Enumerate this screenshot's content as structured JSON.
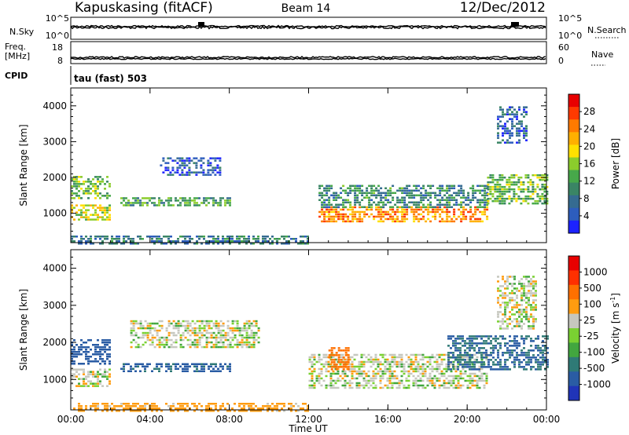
{
  "header": {
    "station": "Kapuskasing (fitACF)",
    "beam": "Beam 14",
    "date": "12/Dec/2012"
  },
  "ancillary": {
    "nsky_label": "N.Sky",
    "nsky_ticks": [
      "10^5",
      "10^0"
    ],
    "nsearch_label": "N.Search",
    "nsearch_ticks": [
      "10^5",
      "10^0"
    ],
    "freq_label_1": "Freq.",
    "freq_label_2": "[MHz]",
    "freq_ticks": [
      "18",
      "8"
    ],
    "nave_label": "Nave",
    "nave_ticks": [
      "60",
      "0"
    ],
    "cpid_label": "CPID",
    "cpid_value": "tau (fast) 503"
  },
  "chart_data": [
    {
      "type": "heatmap",
      "title": "",
      "xlabel": "Time UT",
      "ylabel": "Slant Range [km]",
      "x_ticks": [
        "00:00",
        "04:00",
        "08:00",
        "12:00",
        "16:00",
        "20:00",
        "00:00"
      ],
      "xlim_hours": [
        0,
        24
      ],
      "y_ticks": [
        "4000",
        "3000",
        "2000",
        "1000"
      ],
      "ylim_km": [
        180,
        4500
      ],
      "colorbar": {
        "label": "Power [dB]",
        "ticks": [
          "28",
          "24",
          "20",
          "16",
          "12",
          "8",
          "4"
        ],
        "range_db": [
          0,
          32
        ],
        "colors": [
          "#1c22ff",
          "#2d5dbd",
          "#356b91",
          "#3a8565",
          "#47a84a",
          "#8bcc2c",
          "#ffe000",
          "#ffb000",
          "#ff7a00",
          "#ff3a00",
          "#e80000"
        ]
      },
      "echo_regions": [
        {
          "t0": 0.0,
          "t1": 2.0,
          "r0": 1450,
          "r1": 2100,
          "value_db": 14
        },
        {
          "t0": 0.0,
          "t1": 2.0,
          "r0": 850,
          "r1": 1300,
          "value_db": 18
        },
        {
          "t0": 2.5,
          "t1": 8.0,
          "r0": 1250,
          "r1": 1500,
          "value_db": 12
        },
        {
          "t0": 4.5,
          "t1": 7.5,
          "r0": 2100,
          "r1": 2600,
          "value_db": 5
        },
        {
          "t0": 12.5,
          "t1": 21.0,
          "r0": 800,
          "r1": 1200,
          "value_db": 24
        },
        {
          "t0": 12.5,
          "t1": 21.0,
          "r0": 1200,
          "r1": 1800,
          "value_db": 10
        },
        {
          "t0": 21.0,
          "t1": 24.0,
          "r0": 1300,
          "r1": 2100,
          "value_db": 14
        },
        {
          "t0": 0.0,
          "t1": 12.0,
          "r0": 180,
          "r1": 420,
          "value_db": 8
        },
        {
          "t0": 21.5,
          "t1": 23.0,
          "r0": 3000,
          "r1": 4000,
          "value_db": 6
        }
      ]
    },
    {
      "type": "heatmap",
      "title": "",
      "xlabel": "Time UT",
      "ylabel": "Slant Range [km]",
      "x_ticks": [
        "00:00",
        "04:00",
        "08:00",
        "12:00",
        "16:00",
        "20:00",
        "00:00"
      ],
      "xlim_hours": [
        0,
        24
      ],
      "y_ticks": [
        "4000",
        "3000",
        "2000",
        "1000"
      ],
      "ylim_km": [
        180,
        4500
      ],
      "colorbar": {
        "label": "Velocity [m s^-1]",
        "unit_label": "Velocity [m s",
        "unit_exp": "-1",
        "unit_close": "]",
        "ticks": [
          "1000",
          "500",
          "100",
          "25",
          "-25",
          "-100",
          "-500",
          "-1000"
        ],
        "range_ms": [
          -1000,
          1000
        ],
        "colors": [
          "#2034b8",
          "#2a5ca4",
          "#2f7a76",
          "#42a63f",
          "#7ad132",
          "#c6c7be",
          "#ff9c10",
          "#ff7000",
          "#ff3000",
          "#e80000"
        ]
      },
      "echo_regions": [
        {
          "t0": 0.0,
          "t1": 2.0,
          "r0": 1450,
          "r1": 2100,
          "value_ms": 150
        },
        {
          "t0": 0.0,
          "t1": 2.0,
          "r0": 850,
          "r1": 1300,
          "value_ms": 0
        },
        {
          "t0": 2.5,
          "t1": 8.0,
          "r0": 1250,
          "r1": 1500,
          "value_ms": 120
        },
        {
          "t0": 3.0,
          "t1": 9.5,
          "r0": 1900,
          "r1": 2600,
          "value_ms": 0
        },
        {
          "t0": 12.0,
          "t1": 21.0,
          "r0": 800,
          "r1": 1700,
          "value_ms": 0
        },
        {
          "t0": 13.0,
          "t1": 14.0,
          "r0": 1300,
          "r1": 1900,
          "value_ms": -300
        },
        {
          "t0": 19.0,
          "t1": 24.0,
          "r0": 1300,
          "r1": 2200,
          "value_ms": 100
        },
        {
          "t0": 0.0,
          "t1": 12.0,
          "r0": 180,
          "r1": 420,
          "value_ms": -60
        },
        {
          "t0": 21.5,
          "t1": 23.5,
          "r0": 2400,
          "r1": 3800,
          "value_ms": 0
        }
      ]
    }
  ]
}
